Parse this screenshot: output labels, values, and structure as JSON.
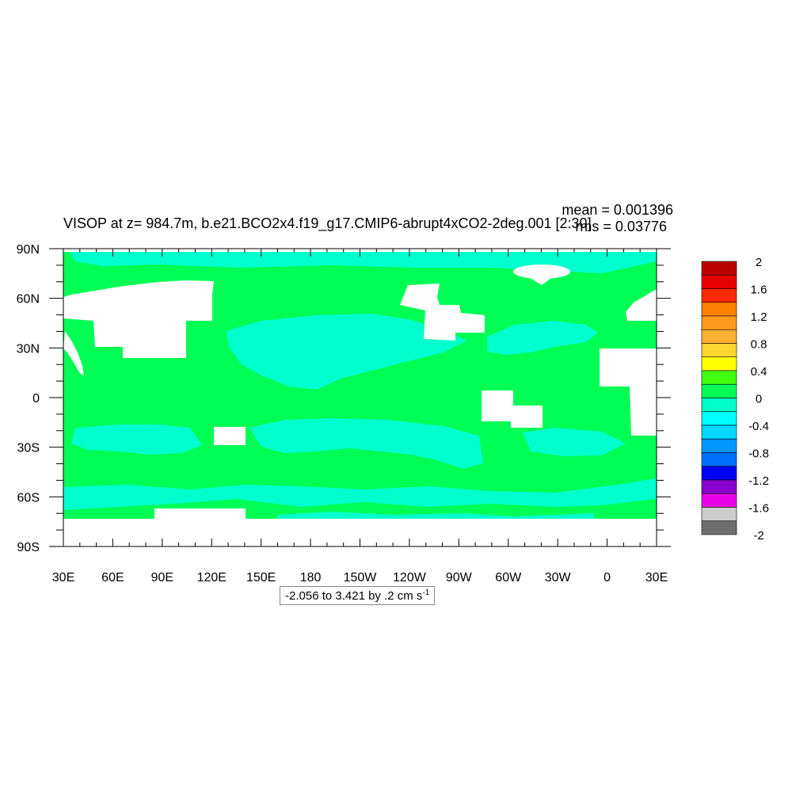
{
  "chart_data": {
    "type": "heatmap",
    "title": "VISOP at z= 984.7m, b.e21.BCO2x4.f19_g17.CMIP6-abrupt4xCO2-2deg.001 [2:30]",
    "stats": {
      "mean": "mean = 0.001396",
      "rms": "rms = 0.03776"
    },
    "range_note": {
      "text": "-2.056 to 3.421 by .2 cm s",
      "sup": "-1"
    },
    "x_ticks": [
      "30E",
      "60E",
      "90E",
      "120E",
      "150E",
      "180",
      "150W",
      "120W",
      "90W",
      "60W",
      "30W",
      "0",
      "30E"
    ],
    "y_ticks": [
      "90N",
      "60N",
      "30N",
      "0",
      "30S",
      "60S",
      "90S"
    ],
    "colorbar": {
      "labels": [
        "2",
        "1.6",
        "1.2",
        "0.8",
        "0.4",
        "0",
        "-0.4",
        "-0.8",
        "-1.2",
        "-1.6",
        "-2"
      ],
      "colors": [
        "#bb0000",
        "#e60000",
        "#ff2a00",
        "#ff7f00",
        "#ff9a20",
        "#ffb030",
        "#ffd530",
        "#ffff00",
        "#40ff10",
        "#00ff55",
        "#00ffc8",
        "#00ffff",
        "#00d8ff",
        "#0096ff",
        "#0070ff",
        "#0000ff",
        "#8800cc",
        "#e800e8",
        "#cccccc",
        "#707070"
      ]
    },
    "field": {
      "background_color": "#00ff55",
      "band_color": "#00ffcc",
      "missing_color": "#ffffff"
    }
  }
}
